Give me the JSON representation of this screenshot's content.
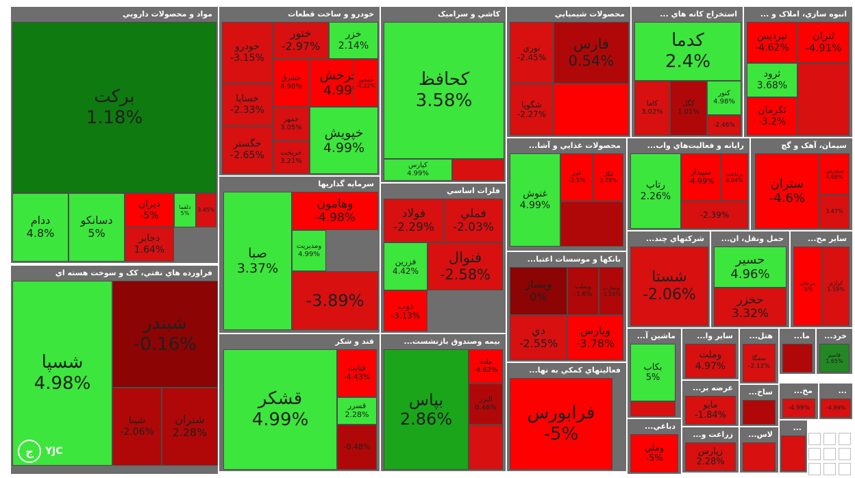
{
  "logo_text": "YJC",
  "logo_mark": "ج",
  "sectors": [
    {
      "id": "pharma",
      "title": "مواد و محصولات دارويي",
      "tiles": [
        {
          "sym": "برکت",
          "pct": "1.18%",
          "c": "g3"
        },
        {
          "sym": "ددام",
          "pct": "4.8%",
          "c": "g1"
        },
        {
          "sym": "دسانکو",
          "pct": "5%",
          "c": "g1"
        },
        {
          "sym": "ديران",
          "pct": "-5%",
          "c": "r1"
        },
        {
          "sym": "دجابر",
          "pct": "1.64%",
          "c": "r2"
        },
        {
          "sym": "دلقما",
          "pct": "5%",
          "c": "g1"
        },
        {
          "sym": "",
          "pct": "3.45%",
          "c": "r2"
        }
      ]
    },
    {
      "id": "auto",
      "title": "خودرو و ساخت قطعات",
      "tiles": [
        {
          "sym": "خودرو",
          "pct": "-3.15%",
          "c": "r2"
        },
        {
          "sym": "ختور",
          "pct": "-2.97%",
          "c": "r2"
        },
        {
          "sym": "خزر",
          "pct": "2.14%",
          "c": "g1"
        },
        {
          "sym": "خساپا",
          "pct": "-2.33%",
          "c": "r2"
        },
        {
          "sym": "خشرق",
          "pct": "4.98%",
          "c": "r1"
        },
        {
          "sym": "خچرخش",
          "pct": "4.99%",
          "c": "r1"
        },
        {
          "sym": "خمحور",
          "pct": "-4.22%",
          "c": "r1"
        },
        {
          "sym": "خگستر",
          "pct": "-2.65%",
          "c": "r2"
        },
        {
          "sym": "خمهر",
          "pct": "3.05%",
          "c": "r2"
        },
        {
          "sym": "خريخت",
          "pct": "3.21%",
          "c": "r2"
        },
        {
          "sym": "خپويش",
          "pct": "4.99%",
          "c": "g1"
        }
      ]
    },
    {
      "id": "tile",
      "title": "کاشي و سراميک",
      "tiles": [
        {
          "sym": "کحافظ",
          "pct": "3.58%",
          "c": "g1"
        },
        {
          "sym": "کپارس",
          "pct": "4.99%",
          "c": "g1"
        },
        {
          "sym": "",
          "pct": "",
          "c": "r2"
        }
      ]
    },
    {
      "id": "chem",
      "title": "محصولات شيميايي",
      "tiles": [
        {
          "sym": "نوري",
          "pct": "-2.45%",
          "c": "r2"
        },
        {
          "sym": "فارس",
          "pct": "0.54%",
          "c": "r3"
        },
        {
          "sym": "شگويا",
          "pct": "-2.27%",
          "c": "r2"
        },
        {
          "sym": "",
          "pct": "",
          "c": "r1"
        }
      ]
    },
    {
      "id": "mining",
      "title": "استخراج کانه هاي ...",
      "tiles": [
        {
          "sym": "کدما",
          "pct": "2.4%",
          "c": "g1"
        },
        {
          "sym": "کاما",
          "pct": "3.02%",
          "c": "r2"
        },
        {
          "sym": "کگل",
          "pct": "1.01%",
          "c": "r3"
        },
        {
          "sym": "کنور",
          "pct": "4.98%",
          "c": "g1"
        },
        {
          "sym": "",
          "pct": "-2.46%",
          "c": "r2"
        }
      ]
    },
    {
      "id": "housing",
      "title": "انبوه سازي، املاک و ...",
      "tiles": [
        {
          "sym": "ثپرديس",
          "pct": "-4.62%",
          "c": "r1"
        },
        {
          "sym": "ثتران",
          "pct": "-4.91%",
          "c": "r1"
        },
        {
          "sym": "ثرود",
          "pct": "3.68%",
          "c": "g1"
        },
        {
          "sym": "ثکرمان",
          "pct": "-3.2%",
          "c": "r1"
        },
        {
          "sym": "",
          "pct": "",
          "c": "r2"
        }
      ]
    },
    {
      "id": "food",
      "title": "محصولات غذايي و آشا...",
      "tiles": [
        {
          "sym": "غنوش",
          "pct": "4.99%",
          "c": "g1"
        },
        {
          "sym": "غزر",
          "pct": "-3.5%",
          "c": "r1"
        },
        {
          "sym": "غگل",
          "pct": "3.79%",
          "c": "r1"
        },
        {
          "sym": "",
          "pct": "",
          "c": "r3"
        }
      ]
    },
    {
      "id": "it",
      "title": "رايانه و فعاليت‌هاي واب...",
      "tiles": [
        {
          "sym": "رتاپ",
          "pct": "2.26%",
          "c": "g1"
        },
        {
          "sym": "سپيدار",
          "pct": "-4.99%",
          "c": "r1"
        },
        {
          "sym": "پرداخت",
          "pct": "4.04%",
          "c": "r1"
        },
        {
          "sym": "",
          "pct": "-2.39%",
          "c": "r2"
        }
      ]
    },
    {
      "id": "cement",
      "title": "سيمان، آهک و گچ",
      "tiles": [
        {
          "sym": "ستران",
          "pct": "-4.6%",
          "c": "r1"
        },
        {
          "sym": "سفارس",
          "pct": "4.68%",
          "c": "r1"
        },
        {
          "sym": "",
          "pct": "3.47%",
          "c": "r2"
        }
      ]
    },
    {
      "id": "refinery",
      "title": "فراورده هاي نفتي، کک و سوخت هسته اي",
      "tiles": [
        {
          "sym": "شسپا",
          "pct": "4.98%",
          "c": "g1"
        },
        {
          "sym": "شبندر",
          "pct": "-0.16%",
          "c": "r4"
        },
        {
          "sym": "شپنا",
          "pct": "-2.06%",
          "c": "r3"
        },
        {
          "sym": "شتران",
          "pct": "2.28%",
          "c": "r3"
        }
      ]
    },
    {
      "id": "invest",
      "title": "سرمايه گذاريها",
      "tiles": [
        {
          "sym": "صبا",
          "pct": "3.37%",
          "c": "g1"
        },
        {
          "sym": "وهامون",
          "pct": "-4.98%",
          "c": "r1"
        },
        {
          "sym": "ومديريت",
          "pct": "4.99%",
          "c": "g1"
        },
        {
          "sym": "",
          "pct": "-3.89%",
          "c": "r2"
        }
      ]
    },
    {
      "id": "metals",
      "title": "فلزات اساسي",
      "tiles": [
        {
          "sym": "فولاد",
          "pct": "-2.29%",
          "c": "r2"
        },
        {
          "sym": "فملي",
          "pct": "-2.03%",
          "c": "r2"
        },
        {
          "sym": "فزرين",
          "pct": "4.42%",
          "c": "g1"
        },
        {
          "sym": "فنوال",
          "pct": "-2.58%",
          "c": "r2"
        },
        {
          "sym": "ذوب",
          "pct": "-3.13%",
          "c": "r1"
        }
      ]
    },
    {
      "id": "banks",
      "title": "بانکها و موسسات اعتبا...",
      "tiles": [
        {
          "sym": "وبساز",
          "pct": "0%",
          "c": "r4"
        },
        {
          "sym": "وبملت",
          "pct": "-1.6%",
          "c": "r3"
        },
        {
          "sym": "وتجارت",
          "pct": "-1.55%",
          "c": "r3"
        },
        {
          "sym": "وپارس",
          "pct": "-3.78%",
          "c": "r1"
        },
        {
          "sym": "دي",
          "pct": "-2.55%",
          "c": "r2"
        }
      ]
    },
    {
      "id": "multi",
      "title": "شرکتهاي چند...",
      "tiles": [
        {
          "sym": "شستا",
          "pct": "-2.06%",
          "c": "r2"
        }
      ]
    },
    {
      "id": "transport",
      "title": "حمل ونقل، ان...",
      "tiles": [
        {
          "sym": "حسير",
          "pct": "4.96%",
          "c": "g1"
        },
        {
          "sym": "حخزر",
          "pct": "3.32%",
          "c": "r2"
        }
      ]
    },
    {
      "id": "other",
      "title": "ساير مح...",
      "tiles": [
        {
          "sym": "مرجان",
          "pct": "-5%",
          "c": "r1"
        },
        {
          "sym": "کرازي",
          "pct": "1.59%",
          "c": "r2"
        }
      ]
    },
    {
      "id": "sugar",
      "title": "قند و شکر",
      "tiles": [
        {
          "sym": "قشکر",
          "pct": "4.99%",
          "c": "g1"
        },
        {
          "sym": "قنابت",
          "pct": "-4.43%",
          "c": "r1"
        },
        {
          "sym": "قسرر",
          "pct": "2.28%",
          "c": "g1"
        },
        {
          "sym": "",
          "pct": "-0.48%",
          "c": "r3"
        }
      ]
    },
    {
      "id": "insurance",
      "title": "بيمه وصندوق بازنشست...",
      "tiles": [
        {
          "sym": "بپاس",
          "pct": "2.86%",
          "c": "g2"
        },
        {
          "sym": "ملت",
          "pct": "-4.62%",
          "c": "r1"
        },
        {
          "sym": "البرز",
          "pct": "0.46%",
          "c": "r3"
        },
        {
          "sym": "",
          "pct": "",
          "c": "r2"
        }
      ]
    },
    {
      "id": "support",
      "title": "فعاليتهاي کمکي به نها...",
      "tiles": [
        {
          "sym": "فرابورس",
          "pct": "-5%",
          "c": "r1"
        }
      ]
    },
    {
      "id": "machinery",
      "title": "ماشين آ...",
      "tiles": [
        {
          "sym": "بکاب",
          "pct": "5%",
          "c": "g1"
        },
        {
          "sym": "",
          "pct": "",
          "c": "r2"
        }
      ]
    },
    {
      "id": "other2",
      "title": "ساير وا...",
      "tiles": [
        {
          "sym": "وملت",
          "pct": "4.97%",
          "c": "r2"
        }
      ]
    },
    {
      "id": "hotel",
      "title": "هتل...",
      "tiles": [
        {
          "sym": "سمگا",
          "pct": "-2.12%",
          "c": "r2"
        }
      ]
    },
    {
      "id": "ma",
      "title": "ما...",
      "tiles": [
        {
          "sym": "",
          "pct": "",
          "c": "r3"
        }
      ]
    },
    {
      "id": "retail",
      "title": "خرد...",
      "tiles": [
        {
          "sym": "قاسم",
          "pct": "1.65%",
          "c": "g4"
        }
      ]
    },
    {
      "id": "supply",
      "title": "عرضه بر...",
      "tiles": [
        {
          "sym": "مايو",
          "pct": "-1.84%",
          "c": "r2"
        }
      ]
    },
    {
      "id": "build",
      "title": "ساخ...",
      "tiles": [
        {
          "sym": "",
          "pct": "",
          "c": "r3"
        }
      ]
    },
    {
      "id": "mokh",
      "title": "مخ...",
      "tiles": [
        {
          "sym": "",
          "pct": "-4.99%",
          "c": "r2"
        }
      ]
    },
    {
      "id": "tex",
      "title": "...",
      "tiles": [
        {
          "sym": "",
          "pct": "-4.99%",
          "c": "r2"
        }
      ]
    },
    {
      "id": "paper",
      "title": "دباغي...",
      "tiles": [
        {
          "sym": "وملي",
          "pct": "-5%",
          "c": "r1"
        }
      ]
    },
    {
      "id": "agri",
      "title": "زراعت و...",
      "tiles": [
        {
          "sym": "زپارس",
          "pct": "2.28%",
          "c": "r2"
        }
      ]
    },
    {
      "id": "cable",
      "title": "لاس...",
      "tiles": [
        {
          "sym": "",
          "pct": "",
          "c": "r2"
        }
      ]
    },
    {
      "id": "mo",
      "title": "...",
      "tiles": [
        {
          "sym": "",
          "pct": "",
          "c": "r2"
        }
      ]
    }
  ]
}
